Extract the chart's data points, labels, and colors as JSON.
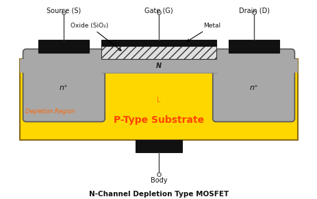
{
  "title": "N-Channel Depletion Type MOSFET",
  "bg_color": "#ffffff",
  "substrate_color": "#FFD700",
  "substrate_border": "#8B6914",
  "nplus_color": "#A8A8A8",
  "oxide_hatch_color": "#E0E0E0",
  "metal_black": "#111111",
  "channel_color": "#C8C8C8",
  "depletion_text_color": "#FF6600",
  "ptype_text_color": "#FF4400",
  "label_color": "#111111",
  "source_label": "Source (S)",
  "gate_label": "Gate (G)",
  "drain_label": "Drain (D)",
  "oxide_label": "Oxide (SiO₂)",
  "metal_label": "Metal",
  "n_channel_label": "N",
  "nplus_left_label": "n⁺",
  "nplus_right_label": "n⁺",
  "depletion_label": "Depletion Region",
  "ptype_label": "P-Type Substrate",
  "L_label": "L",
  "body_label": "Body"
}
